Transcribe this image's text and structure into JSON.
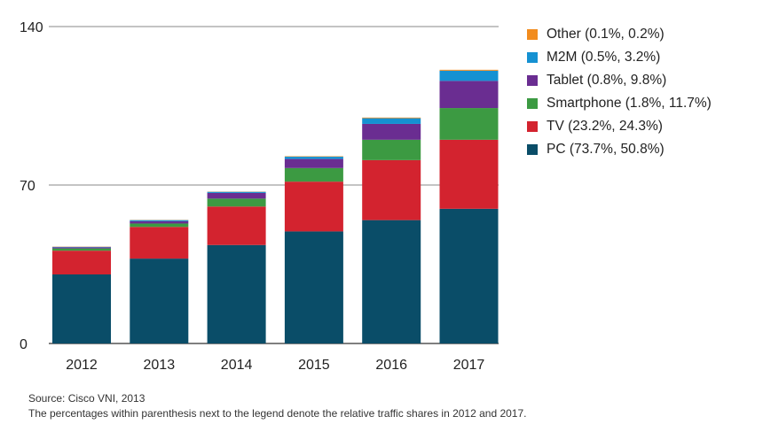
{
  "chart_data": {
    "type": "bar",
    "stacked": true,
    "categories": [
      "2012",
      "2013",
      "2014",
      "2015",
      "2016",
      "2017"
    ],
    "ylim": [
      0,
      140
    ],
    "yticks": [
      "0",
      "70",
      "140"
    ],
    "grid": true,
    "legend_position": "right",
    "series": [
      {
        "name": "PC (73.7%, 50.8%)",
        "color": "#0a4d68",
        "values": [
          30.5,
          37.5,
          43.5,
          49.5,
          54.5,
          59.5
        ]
      },
      {
        "name": "TV (23.2%, 24.3%)",
        "color": "#d3232f",
        "values": [
          10.5,
          14,
          17,
          22,
          26.5,
          30.5
        ]
      },
      {
        "name": "Smartphone (1.8%, 11.7%)",
        "color": "#3c9a42",
        "values": [
          1,
          1.5,
          3.5,
          6,
          9,
          14
        ]
      },
      {
        "name": "Tablet (0.8%, 9.8%)",
        "color": "#6a2d91",
        "values": [
          0.5,
          1,
          2.5,
          4,
          7,
          12
        ]
      },
      {
        "name": "M2M (0.5%, 3.2%)",
        "color": "#1591d2",
        "values": [
          0.2,
          0.5,
          0.5,
          1,
          2.5,
          4.5
        ]
      },
      {
        "name": "Other (0.1%, 0.2%)",
        "color": "#f28c1e",
        "values": [
          0.1,
          0.1,
          0.1,
          0.2,
          0.3,
          0.4
        ]
      }
    ]
  },
  "legend_order": [
    5,
    4,
    3,
    2,
    1,
    0
  ],
  "footer": {
    "source": "Source: Cisco VNI, 2013",
    "note": "The percentages within parenthesis next to the legend denote the relative traffic shares in 2012 and 2017."
  }
}
